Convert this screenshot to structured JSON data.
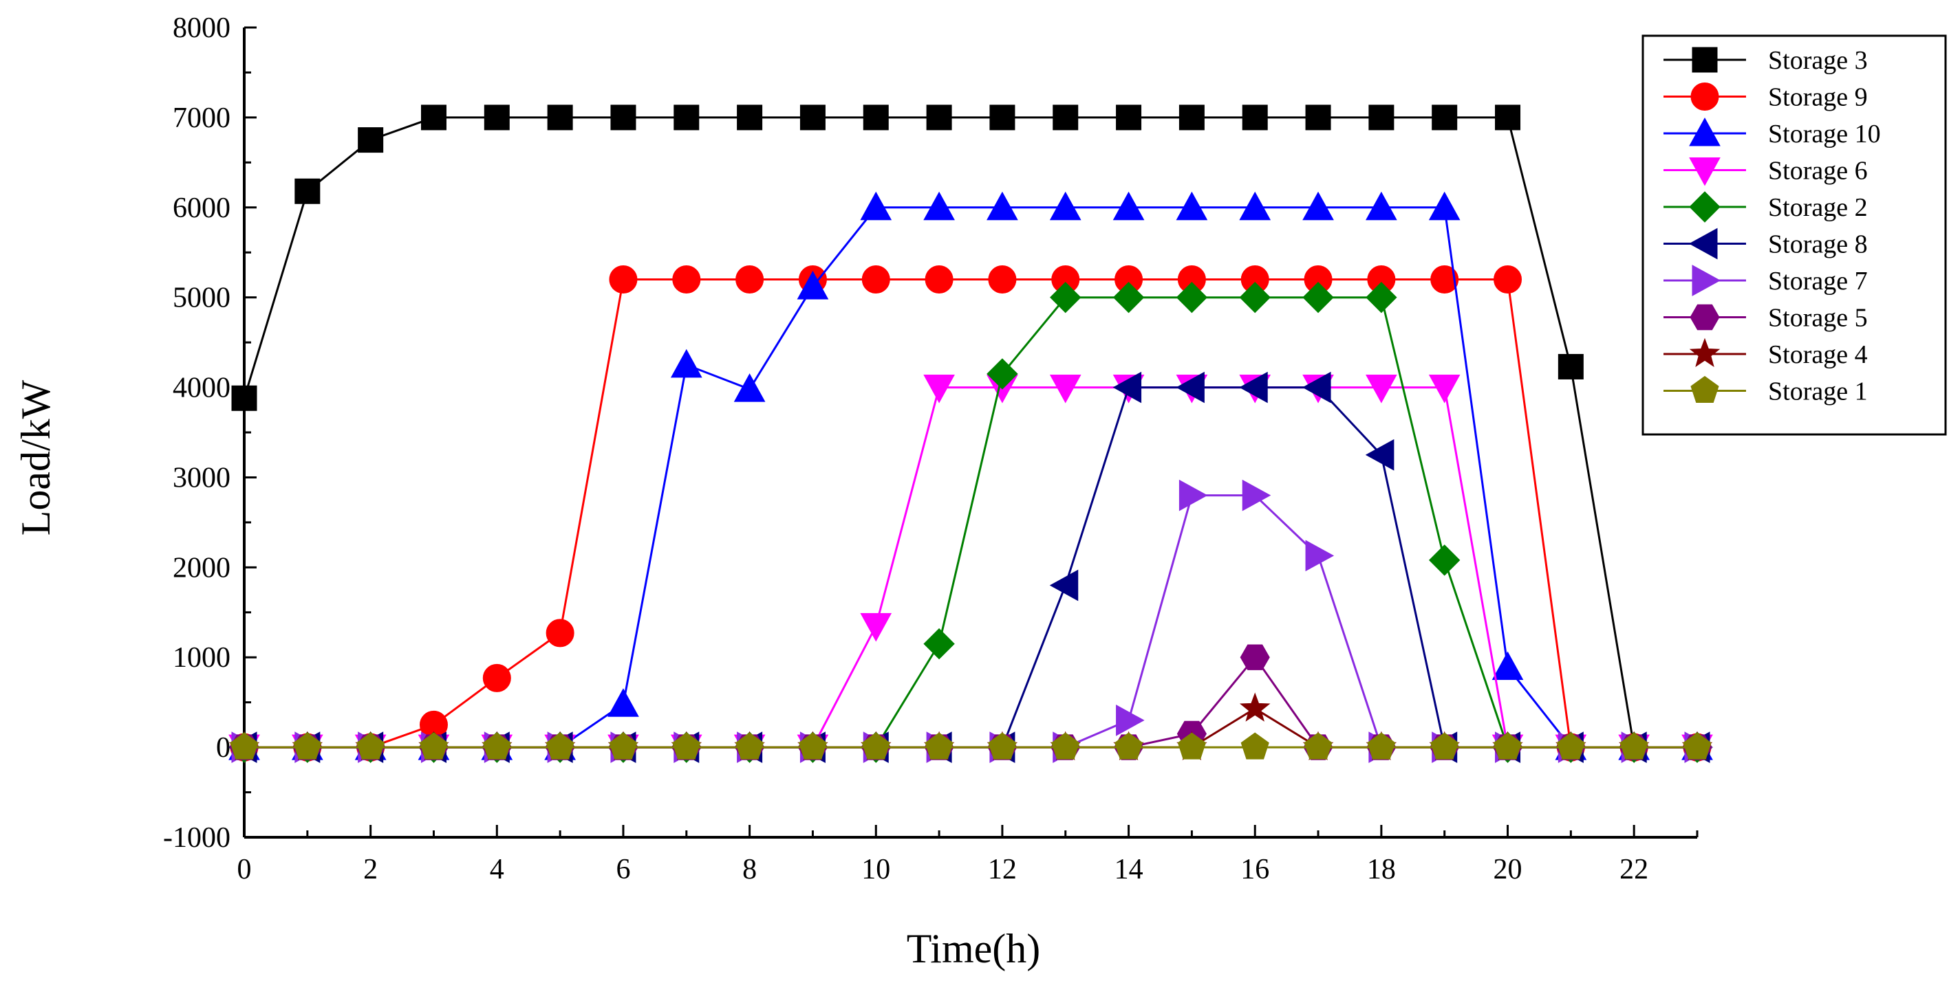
{
  "chart_data": {
    "type": "line",
    "title": "",
    "xlabel": "Time(h)",
    "ylabel": "Load/kW",
    "xlim": [
      0,
      23
    ],
    "ylim": [
      -1000,
      8000
    ],
    "x_ticks": [
      0,
      2,
      4,
      6,
      8,
      10,
      12,
      14,
      16,
      18,
      20,
      22
    ],
    "y_ticks": [
      -1000,
      0,
      1000,
      2000,
      3000,
      4000,
      5000,
      6000,
      7000,
      8000
    ],
    "grid": false,
    "legend_position": "top-right",
    "x": [
      0,
      1,
      2,
      3,
      4,
      5,
      6,
      7,
      8,
      9,
      10,
      11,
      12,
      13,
      14,
      15,
      16,
      17,
      18,
      19,
      20,
      21,
      22,
      23
    ],
    "series": [
      {
        "name": "Storage 3",
        "color": "#000000",
        "marker": "square",
        "values": [
          3880,
          6180,
          6750,
          7000,
          7000,
          7000,
          7000,
          7000,
          7000,
          7000,
          7000,
          7000,
          7000,
          7000,
          7000,
          7000,
          7000,
          7000,
          7000,
          7000,
          7000,
          4230,
          0,
          0
        ]
      },
      {
        "name": "Storage 9",
        "color": "#ff0000",
        "marker": "circle",
        "values": [
          0,
          0,
          0,
          250,
          770,
          1270,
          5200,
          5200,
          5200,
          5200,
          5200,
          5200,
          5200,
          5200,
          5200,
          5200,
          5200,
          5200,
          5200,
          5200,
          5200,
          0,
          0,
          0
        ]
      },
      {
        "name": "Storage 10",
        "color": "#0000ff",
        "marker": "triangle-up",
        "values": [
          0,
          0,
          0,
          0,
          0,
          0,
          480,
          4250,
          3980,
          5120,
          6000,
          6000,
          6000,
          6000,
          6000,
          6000,
          6000,
          6000,
          6000,
          6000,
          890,
          0,
          0,
          0
        ]
      },
      {
        "name": "Storage 6",
        "color": "#ff00ff",
        "marker": "triangle-down",
        "values": [
          0,
          0,
          0,
          0,
          0,
          0,
          0,
          0,
          0,
          0,
          1350,
          4000,
          4000,
          4000,
          4000,
          4000,
          4000,
          4000,
          4000,
          4000,
          0,
          0,
          0,
          0
        ]
      },
      {
        "name": "Storage 2",
        "color": "#008000",
        "marker": "diamond",
        "values": [
          0,
          0,
          0,
          0,
          0,
          0,
          0,
          0,
          0,
          0,
          0,
          1150,
          4150,
          5000,
          5000,
          5000,
          5000,
          5000,
          5000,
          2080,
          0,
          0,
          0,
          0
        ]
      },
      {
        "name": "Storage 8",
        "color": "#000080",
        "marker": "triangle-left",
        "values": [
          0,
          0,
          0,
          0,
          0,
          0,
          0,
          0,
          0,
          0,
          0,
          0,
          0,
          1800,
          4000,
          4000,
          4000,
          4000,
          3250,
          0,
          0,
          0,
          0,
          0
        ]
      },
      {
        "name": "Storage 7",
        "color": "#8a2be2",
        "marker": "triangle-right",
        "values": [
          0,
          0,
          0,
          0,
          0,
          0,
          0,
          0,
          0,
          0,
          0,
          0,
          0,
          0,
          300,
          2800,
          2800,
          2130,
          0,
          0,
          0,
          0,
          0,
          0
        ]
      },
      {
        "name": "Storage 5",
        "color": "#800080",
        "marker": "hexagon",
        "values": [
          0,
          0,
          0,
          0,
          0,
          0,
          0,
          0,
          0,
          0,
          0,
          0,
          0,
          0,
          0,
          150,
          1000,
          0,
          0,
          0,
          0,
          0,
          0,
          0
        ]
      },
      {
        "name": "Storage 4",
        "color": "#800000",
        "marker": "star",
        "values": [
          0,
          0,
          0,
          0,
          0,
          0,
          0,
          0,
          0,
          0,
          0,
          0,
          0,
          0,
          0,
          0,
          430,
          0,
          0,
          0,
          0,
          0,
          0,
          0
        ]
      },
      {
        "name": "Storage 1",
        "color": "#808000",
        "marker": "pentagon",
        "values": [
          0,
          0,
          0,
          0,
          0,
          0,
          0,
          0,
          0,
          0,
          0,
          0,
          0,
          0,
          0,
          0,
          0,
          0,
          0,
          0,
          0,
          0,
          0,
          0
        ]
      }
    ]
  }
}
